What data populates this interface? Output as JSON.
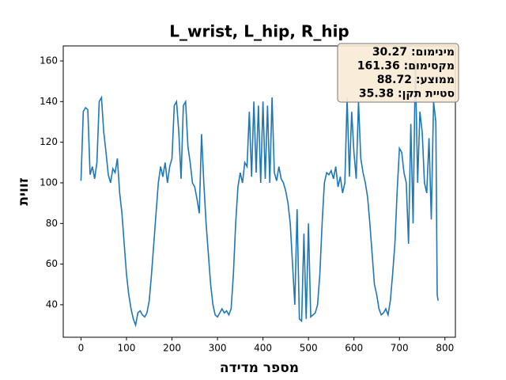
{
  "chart_data": {
    "type": "line",
    "title": "L_wrist, L_hip, R_hip",
    "x_label": "מספר מדידה",
    "y_label": "זווית",
    "x": [
      0,
      5,
      10,
      15,
      20,
      25,
      30,
      35,
      40,
      45,
      50,
      55,
      60,
      65,
      70,
      75,
      80,
      85,
      90,
      95,
      100,
      105,
      110,
      115,
      120,
      125,
      130,
      135,
      140,
      145,
      150,
      155,
      160,
      165,
      170,
      175,
      180,
      185,
      190,
      195,
      200,
      205,
      210,
      215,
      220,
      225,
      230,
      235,
      240,
      245,
      250,
      255,
      260,
      265,
      270,
      275,
      280,
      285,
      290,
      295,
      300,
      305,
      310,
      315,
      320,
      325,
      330,
      335,
      340,
      345,
      350,
      355,
      360,
      365,
      370,
      375,
      380,
      385,
      390,
      395,
      400,
      405,
      410,
      415,
      420,
      425,
      430,
      435,
      440,
      445,
      450,
      455,
      460,
      465,
      470,
      475,
      480,
      485,
      490,
      495,
      500,
      505,
      510,
      515,
      520,
      525,
      530,
      535,
      540,
      545,
      550,
      555,
      560,
      565,
      570,
      575,
      580,
      585,
      590,
      595,
      600,
      605,
      610,
      615,
      620,
      625,
      630,
      635,
      640,
      645,
      650,
      655,
      660,
      665,
      670,
      675,
      680,
      685,
      690,
      695,
      700,
      705,
      710,
      715,
      720,
      725,
      730,
      735,
      740,
      745,
      750,
      755,
      760,
      765,
      770,
      775,
      780,
      783,
      785
    ],
    "series": [
      {
        "name": "L_wrist, L_hip, R_hip",
        "color": "#1f77b4",
        "values": [
          101,
          135,
          137,
          136,
          104,
          108,
          102,
          110,
          140,
          142,
          125,
          115,
          104,
          100,
          107,
          105,
          112,
          95,
          85,
          70,
          55,
          45,
          38,
          33,
          30,
          36,
          37,
          35,
          34,
          36,
          42,
          55,
          70,
          85,
          100,
          108,
          103,
          110,
          100,
          108,
          112,
          138,
          140,
          125,
          102,
          138,
          140,
          118,
          110,
          100,
          98,
          92,
          85,
          124,
          100,
          80,
          65,
          50,
          40,
          35,
          34,
          36,
          38,
          36,
          37,
          35,
          38,
          55,
          80,
          98,
          105,
          100,
          110,
          108,
          135,
          103,
          140,
          105,
          138,
          100,
          140,
          102,
          138,
          100,
          142,
          105,
          101,
          108,
          102,
          100,
          96,
          90,
          80,
          60,
          40,
          87,
          33,
          32,
          75,
          33,
          80,
          34,
          35,
          36,
          40,
          55,
          80,
          100,
          105,
          104,
          106,
          102,
          108,
          98,
          103,
          95,
          100,
          142,
          103,
          135,
          115,
          102,
          140,
          112,
          105,
          100,
          93,
          80,
          65,
          50,
          45,
          38,
          35,
          36,
          38,
          35,
          42,
          55,
          70,
          96,
          117,
          115,
          105,
          100,
          70,
          129,
          80,
          160,
          100,
          135,
          125,
          100,
          95,
          122,
          82,
          140,
          130,
          45,
          42
        ]
      }
    ],
    "xlim": [
      -39,
      823
    ],
    "ylim": [
      24,
      167.4
    ],
    "xticks": [
      0,
      100,
      200,
      300,
      400,
      500,
      600,
      700,
      800
    ],
    "yticks": [
      40,
      60,
      80,
      100,
      120,
      140,
      160
    ],
    "grid": false,
    "annotation": [
      "מינימום: 30.27",
      "מקסימום: 161.36",
      "ממוצע: 88.72",
      "סטיית תקן: 35.38"
    ]
  }
}
